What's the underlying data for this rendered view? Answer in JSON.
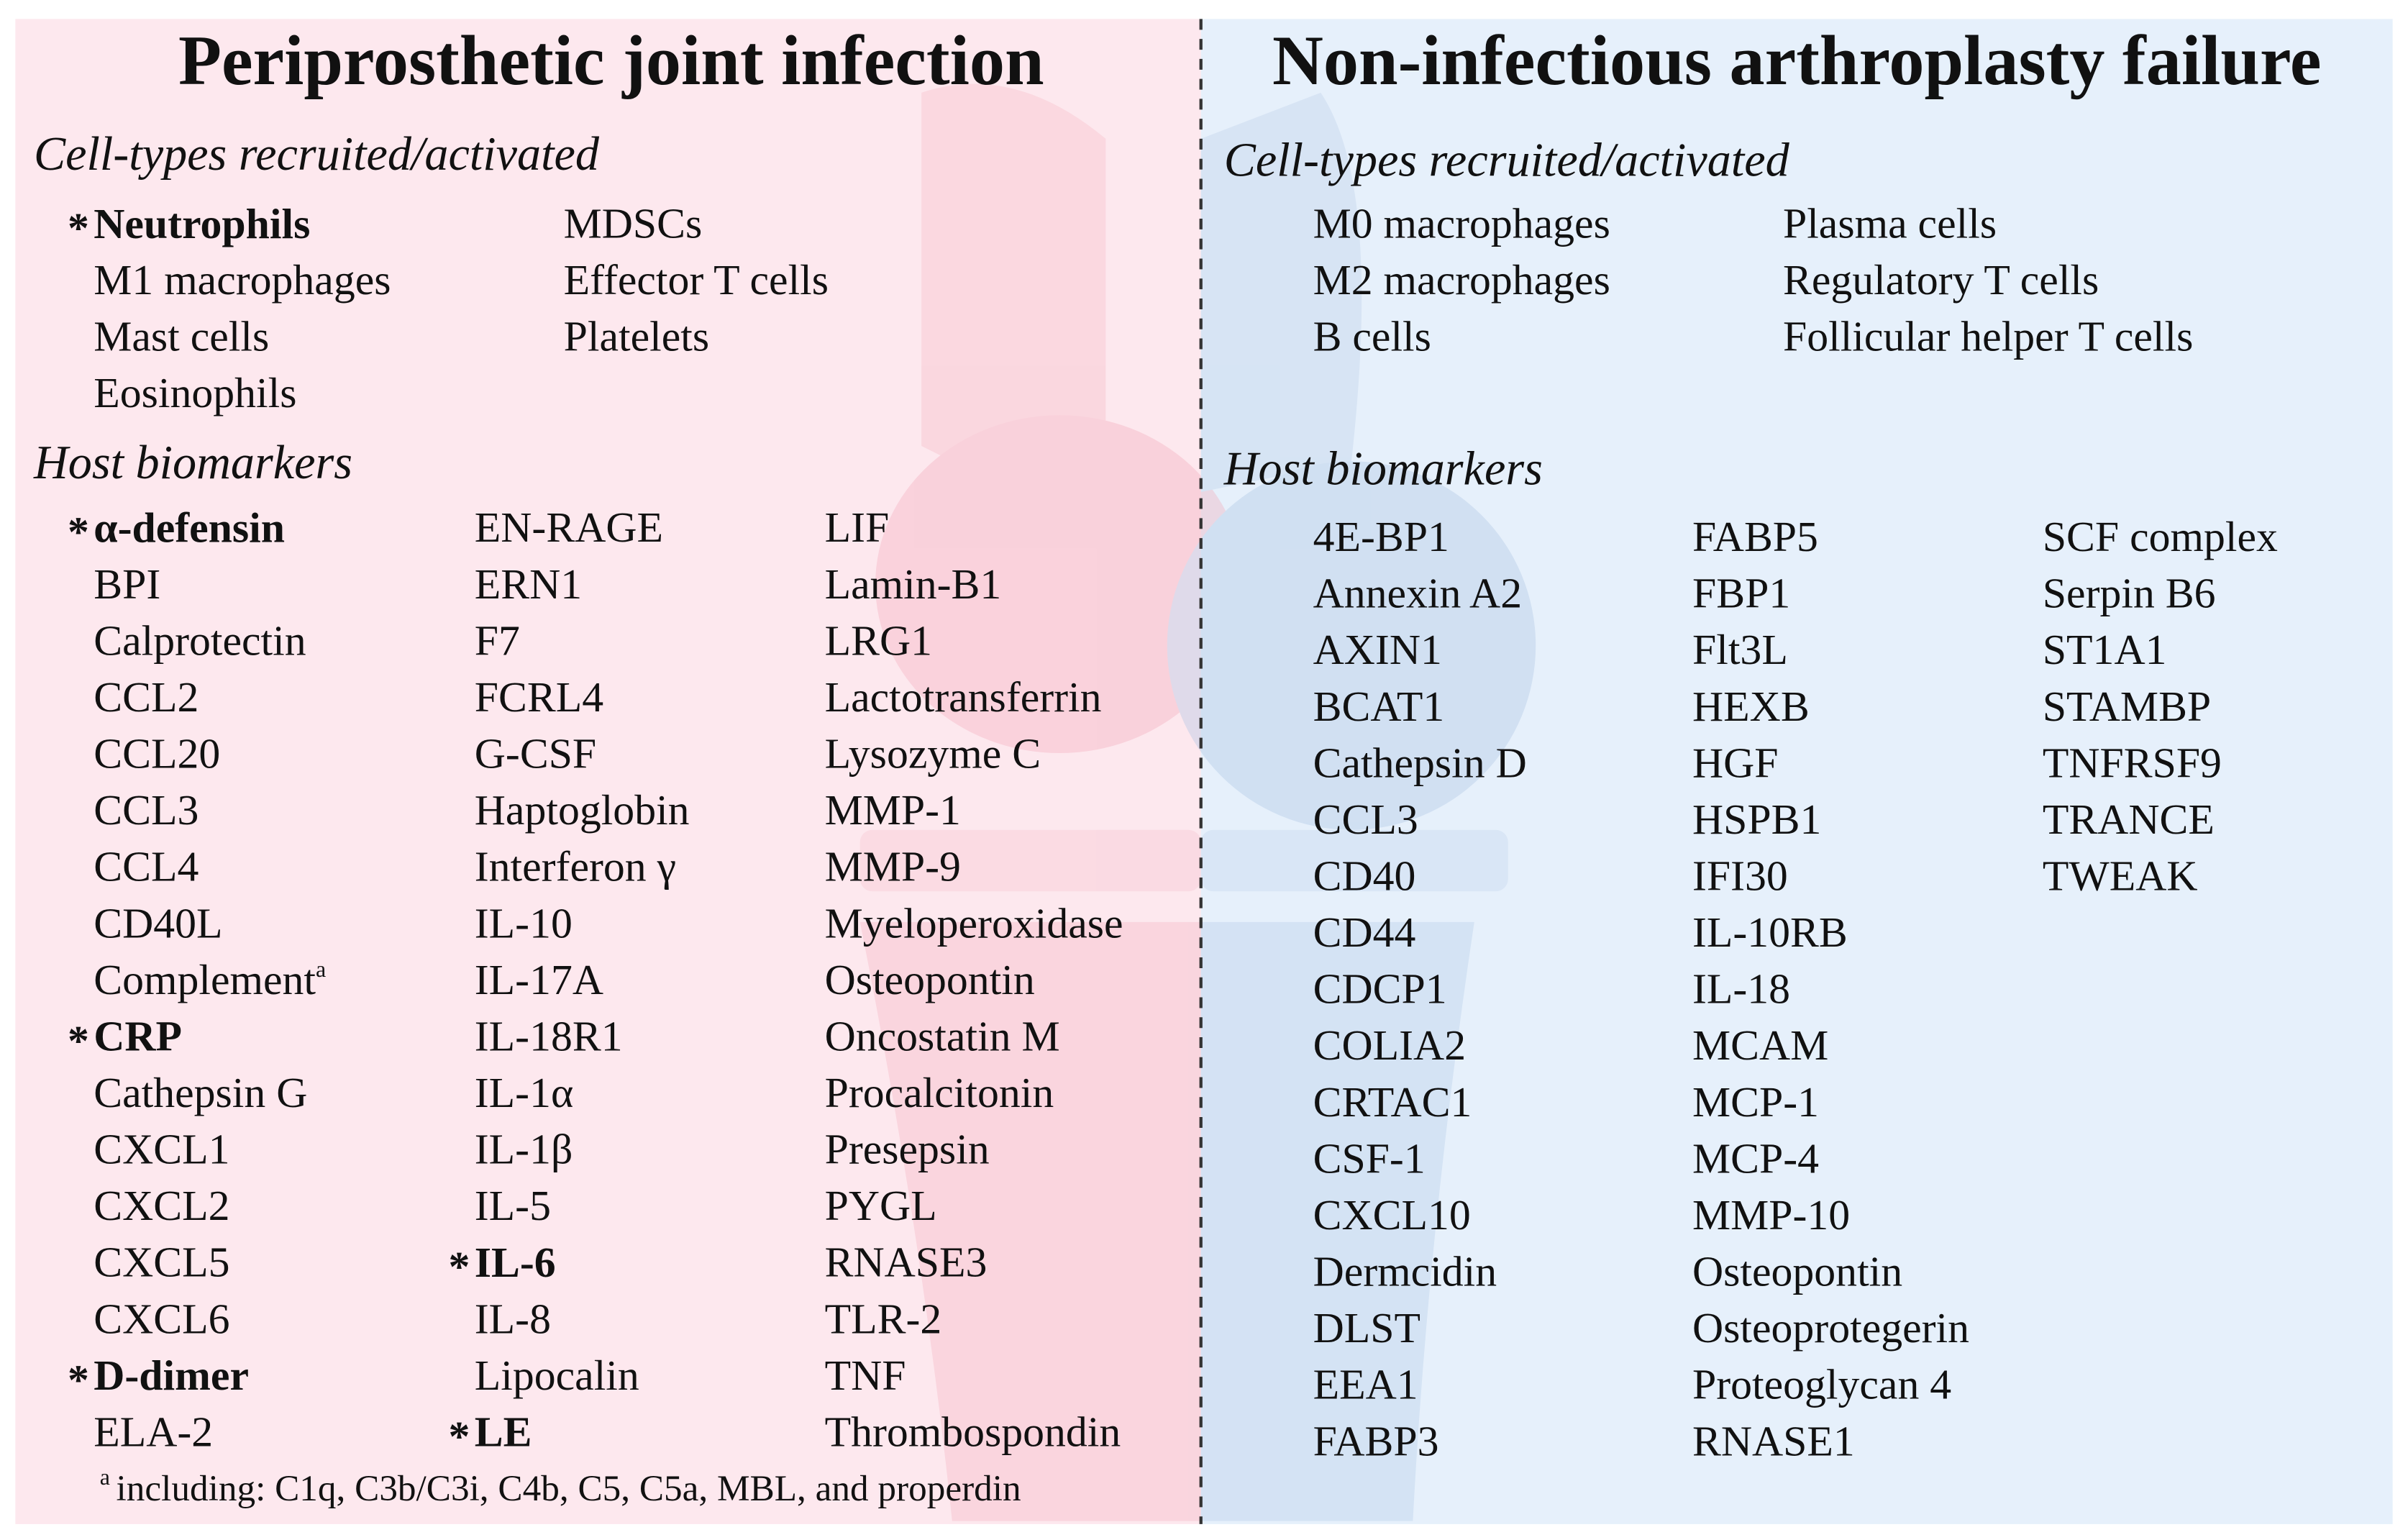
{
  "key_symbol": "*",
  "left": {
    "title": "Periprosthetic joint infection",
    "cells_heading": "Cell-types recruited/activated",
    "cells": [
      [
        {
          "text": "Neutrophils",
          "key": true
        },
        "M1 macrophages",
        "Mast cells",
        "Eosinophils"
      ],
      [
        "MDSCs",
        "Effector T cells",
        "Platelets"
      ]
    ],
    "biomarkers_heading": "Host biomarkers",
    "biomarkers": [
      [
        {
          "text": "α-defensin",
          "key": true
        },
        "BPI",
        "Calprotectin",
        "CCL2",
        "CCL20",
        "CCL3",
        "CCL4",
        "CD40L",
        {
          "text": "Complement",
          "note": "a"
        },
        {
          "text": "CRP",
          "key": true
        },
        "Cathepsin G",
        "CXCL1",
        "CXCL2",
        "CXCL5",
        "CXCL6",
        {
          "text": "D-dimer",
          "key": true
        },
        "ELA-2"
      ],
      [
        "EN-RAGE",
        "ERN1",
        "F7",
        "FCRL4",
        "G-CSF",
        "Haptoglobin",
        "Interferon γ",
        "IL-10",
        "IL-17A",
        "IL-18R1",
        "IL-1α",
        "IL-1β",
        "IL-5",
        {
          "text": "IL-6",
          "key": true
        },
        "IL-8",
        "Lipocalin",
        {
          "text": "LE",
          "key": true
        }
      ],
      [
        "LIF",
        "Lamin-B1",
        "LRG1",
        "Lactotransferrin",
        "Lysozyme C",
        "MMP-1",
        "MMP-9",
        "Myeloperoxidase",
        "Osteopontin",
        "Oncostatin M",
        "Procalcitonin",
        "Presepsin",
        "PYGL",
        "RNASE3",
        "TLR-2",
        "TNF",
        "Thrombospondin"
      ]
    ],
    "footnote": {
      "mark": "a",
      "text": "including: C1q, C3b/C3i, C4b, C5, C5a, MBL, and properdin"
    }
  },
  "right": {
    "title": "Non-infectious arthroplasty failure",
    "cells_heading": "Cell-types recruited/activated",
    "cells": [
      [
        "M0 macrophages",
        "M2 macrophages",
        "B cells"
      ],
      [
        "Plasma cells",
        "Regulatory T cells",
        "Follicular helper T cells"
      ]
    ],
    "biomarkers_heading": "Host biomarkers",
    "biomarkers": [
      [
        "4E-BP1",
        "Annexin A2",
        "AXIN1",
        "BCAT1",
        "Cathepsin D",
        "CCL3",
        "CD40",
        "CD44",
        "CDCP1",
        "COLIA2",
        "CRTAC1",
        "CSF-1",
        "CXCL10",
        "Dermcidin",
        "DLST",
        "EEA1",
        "FABP3"
      ],
      [
        "FABP5",
        "FBP1",
        "Flt3L",
        "HEXB",
        "HGF",
        "HSPB1",
        "IFI30",
        "IL-10RB",
        "IL-18",
        "MCAM",
        "MCP-1",
        "MCP-4",
        "MMP-10",
        "Osteopontin",
        "Osteoprotegerin",
        "Proteoglycan 4",
        "RNASE1"
      ],
      [
        "SCF complex",
        "Serpin B6",
        "ST1A1",
        "STAMBP",
        "TNFRSF9",
        "TRANCE",
        "TWEAK"
      ]
    ]
  }
}
